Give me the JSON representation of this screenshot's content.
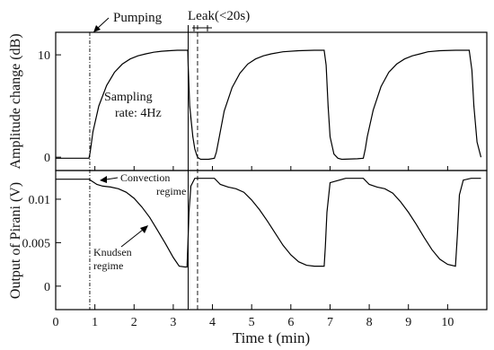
{
  "chart_data": [
    {
      "type": "line",
      "panel": "top",
      "ylabel": "Amplitude change (dB)",
      "xlim": [
        0,
        11
      ],
      "ylim": [
        -1.3,
        12.2
      ],
      "yticks": [
        0,
        10
      ],
      "ytick_labels": [
        "0",
        "10"
      ],
      "grid": false,
      "series": [
        {
          "x": [
            0,
            0.85,
            0.88,
            0.95,
            1.1,
            1.3,
            1.5,
            1.7,
            1.9,
            2.1,
            2.3,
            2.5,
            2.7,
            2.9,
            3.1,
            3.37,
            3.38,
            3.42,
            3.5,
            3.55,
            3.6,
            3.62,
            3.65,
            3.7,
            3.9,
            4.05,
            4.1,
            4.15,
            4.3,
            4.5,
            4.7,
            4.9,
            5.1,
            5.3,
            5.5,
            5.8,
            6.2,
            6.6,
            6.85,
            6.9,
            6.95,
            7.0,
            7.1,
            7.2,
            7.3,
            7.7,
            7.85,
            7.9,
            7.95,
            8.1,
            8.3,
            8.5,
            8.7,
            8.9,
            9.1,
            9.3,
            9.5,
            9.8,
            10.2,
            10.55,
            10.62,
            10.67,
            10.75,
            10.85
          ],
          "y": [
            -0.1,
            -0.1,
            0.5,
            2.5,
            5.0,
            7.0,
            8.3,
            9.1,
            9.6,
            9.9,
            10.1,
            10.25,
            10.35,
            10.4,
            10.45,
            10.45,
            9.0,
            5.0,
            2.0,
            0.8,
            0.2,
            0.0,
            -0.1,
            -0.2,
            -0.2,
            -0.1,
            0.5,
            1.5,
            4.5,
            6.8,
            8.2,
            9.1,
            9.6,
            9.9,
            10.1,
            10.3,
            10.4,
            10.45,
            10.45,
            9.0,
            5.0,
            2.0,
            0.3,
            -0.1,
            -0.2,
            -0.15,
            -0.1,
            0.8,
            2.0,
            4.6,
            6.9,
            8.3,
            9.1,
            9.6,
            9.9,
            10.1,
            10.3,
            10.4,
            10.45,
            10.45,
            8.5,
            5.0,
            1.5,
            0.0
          ]
        }
      ]
    },
    {
      "type": "line",
      "panel": "bottom",
      "xlabel": "Time t (min)",
      "ylabel": "Output of Pirani (V)",
      "xlim": [
        0,
        11
      ],
      "ylim": [
        -0.0027,
        0.0133
      ],
      "xticks": [
        0,
        1,
        2,
        3,
        4,
        5,
        6,
        7,
        8,
        9,
        10
      ],
      "xtick_labels": [
        "0",
        "1",
        "2",
        "3",
        "4",
        "5",
        "6",
        "7",
        "8",
        "9",
        "10"
      ],
      "yticks": [
        0,
        0.005,
        0.01
      ],
      "ytick_labels": [
        "0",
        "0.005",
        "0.01"
      ],
      "grid": false,
      "series": [
        {
          "x": [
            0,
            0.85,
            0.95,
            1.05,
            1.2,
            1.4,
            1.6,
            1.8,
            2.0,
            2.2,
            2.4,
            2.6,
            2.8,
            3.0,
            3.15,
            3.3,
            3.35,
            3.37,
            3.4,
            3.45,
            3.55,
            3.65,
            4.05,
            4.2,
            4.4,
            4.6,
            4.8,
            5.0,
            5.2,
            5.4,
            5.6,
            5.8,
            6.0,
            6.2,
            6.4,
            6.6,
            6.85,
            6.88,
            6.92,
            7.0,
            7.4,
            7.85,
            8.0,
            8.2,
            8.4,
            8.6,
            8.8,
            9.0,
            9.2,
            9.4,
            9.6,
            9.8,
            10.0,
            10.2,
            10.25,
            10.3,
            10.4,
            10.6,
            10.85
          ],
          "y": [
            0.0123,
            0.0123,
            0.012,
            0.0117,
            0.0115,
            0.0114,
            0.0112,
            0.0108,
            0.0101,
            0.0091,
            0.0079,
            0.0064,
            0.0049,
            0.0033,
            0.0023,
            0.0022,
            0.0022,
            0.0045,
            0.0085,
            0.0115,
            0.0124,
            0.0124,
            0.0124,
            0.0117,
            0.0114,
            0.0112,
            0.0108,
            0.0099,
            0.0088,
            0.0075,
            0.0061,
            0.0047,
            0.0036,
            0.0028,
            0.0024,
            0.0023,
            0.0023,
            0.0045,
            0.0085,
            0.0119,
            0.0124,
            0.0124,
            0.0117,
            0.0114,
            0.0112,
            0.0107,
            0.0097,
            0.0085,
            0.0071,
            0.0056,
            0.0042,
            0.0031,
            0.0025,
            0.0023,
            0.006,
            0.0105,
            0.0122,
            0.0124,
            0.0124
          ]
        }
      ]
    }
  ],
  "annotations": {
    "pumping": "Pumping",
    "leak": "Leak(<20s)",
    "sampling": [
      "Sampling",
      "rate: 4Hz"
    ],
    "convection": [
      "Convection",
      "regime"
    ],
    "knudsen": [
      "Knudsen",
      "regime"
    ]
  },
  "event_lines": {
    "pumping_x": 0.87,
    "leak_start_x": 3.38,
    "leak_end_x": 3.62
  }
}
